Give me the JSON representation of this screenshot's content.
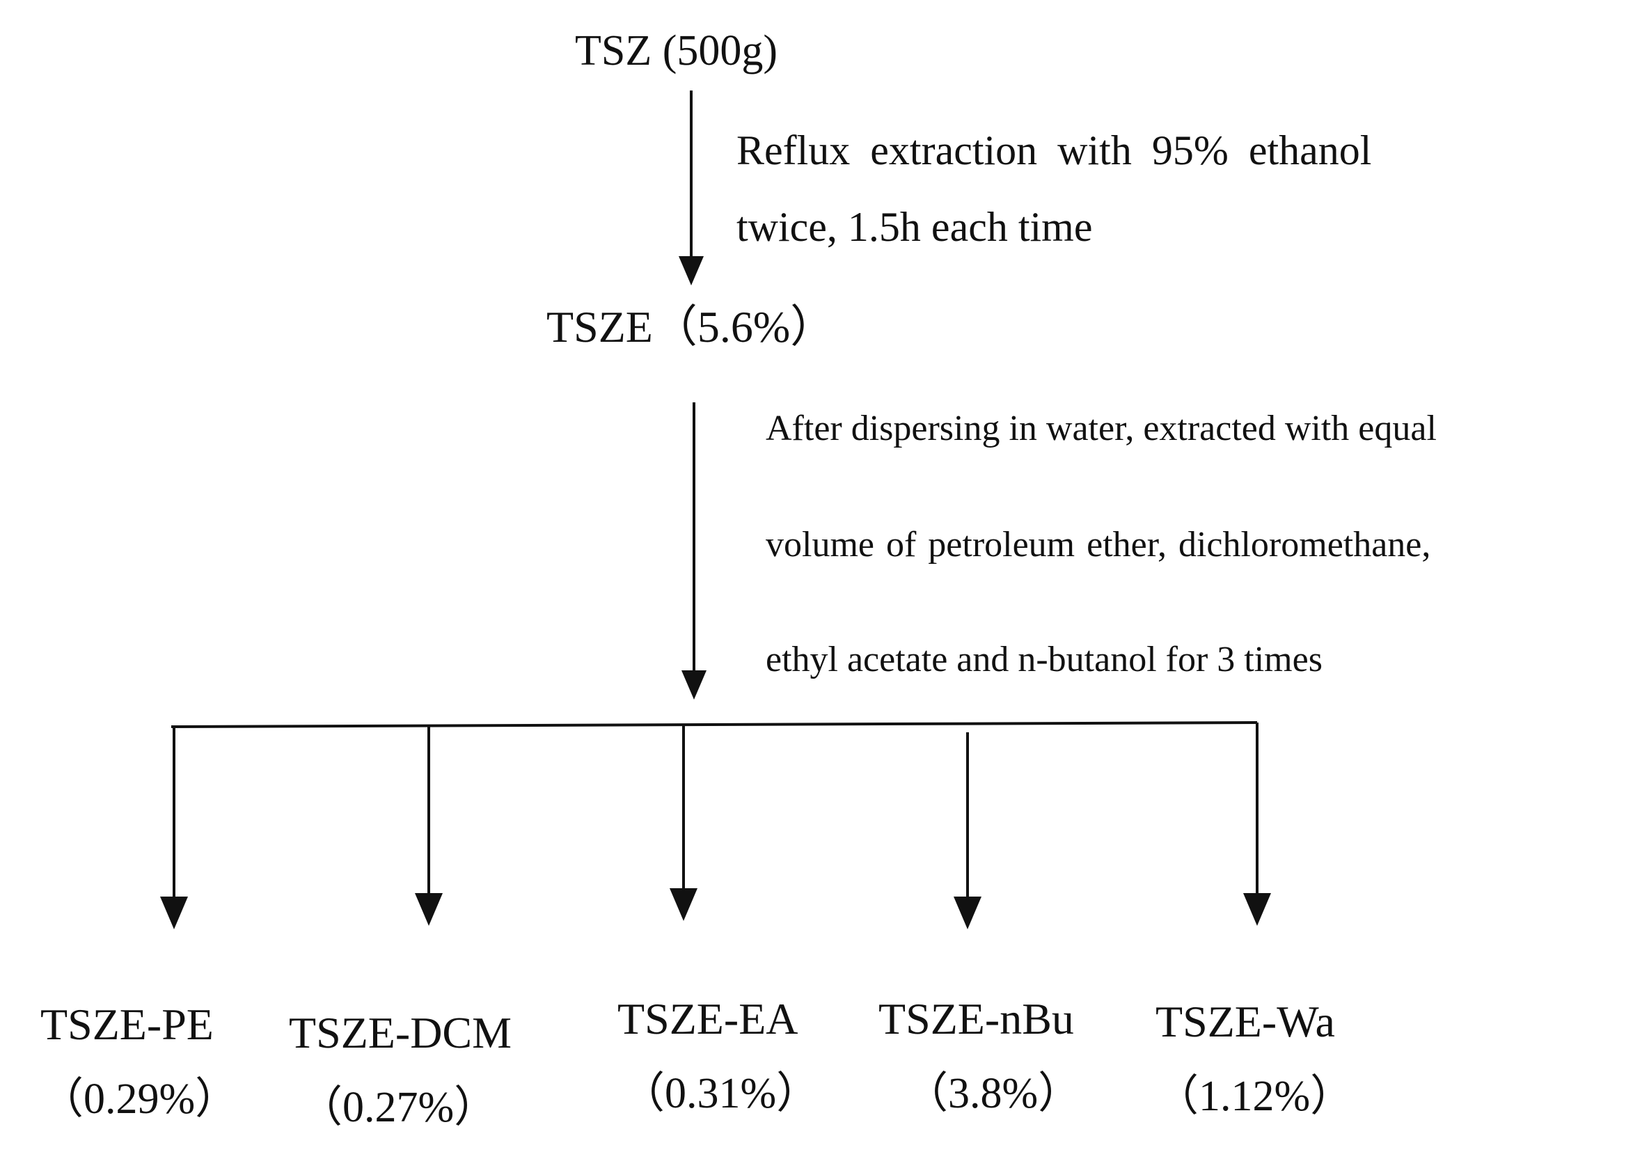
{
  "diagram": {
    "root": "TSZ (500g)",
    "step1": {
      "line1": "Reflux extraction with 95% ethanol",
      "line2": "twice, 1.5h each time"
    },
    "intermediate": "TSZE（5.6%）",
    "step2": {
      "line1": "After dispersing in water, extracted with equal",
      "line2": "volume of petroleum ether, dichloromethane,",
      "line3": "ethyl acetate and n-butanol for 3 times"
    },
    "products": [
      {
        "name": "TSZE-PE",
        "yield": "（0.29%）"
      },
      {
        "name": "TSZE-DCM",
        "yield": "（0.27%）"
      },
      {
        "name": "TSZE-EA",
        "yield": "（0.31%）"
      },
      {
        "name": "TSZE-nBu",
        "yield": "（3.8%）"
      },
      {
        "name": "TSZE-Wa",
        "yield": "（1.12%）"
      }
    ]
  }
}
